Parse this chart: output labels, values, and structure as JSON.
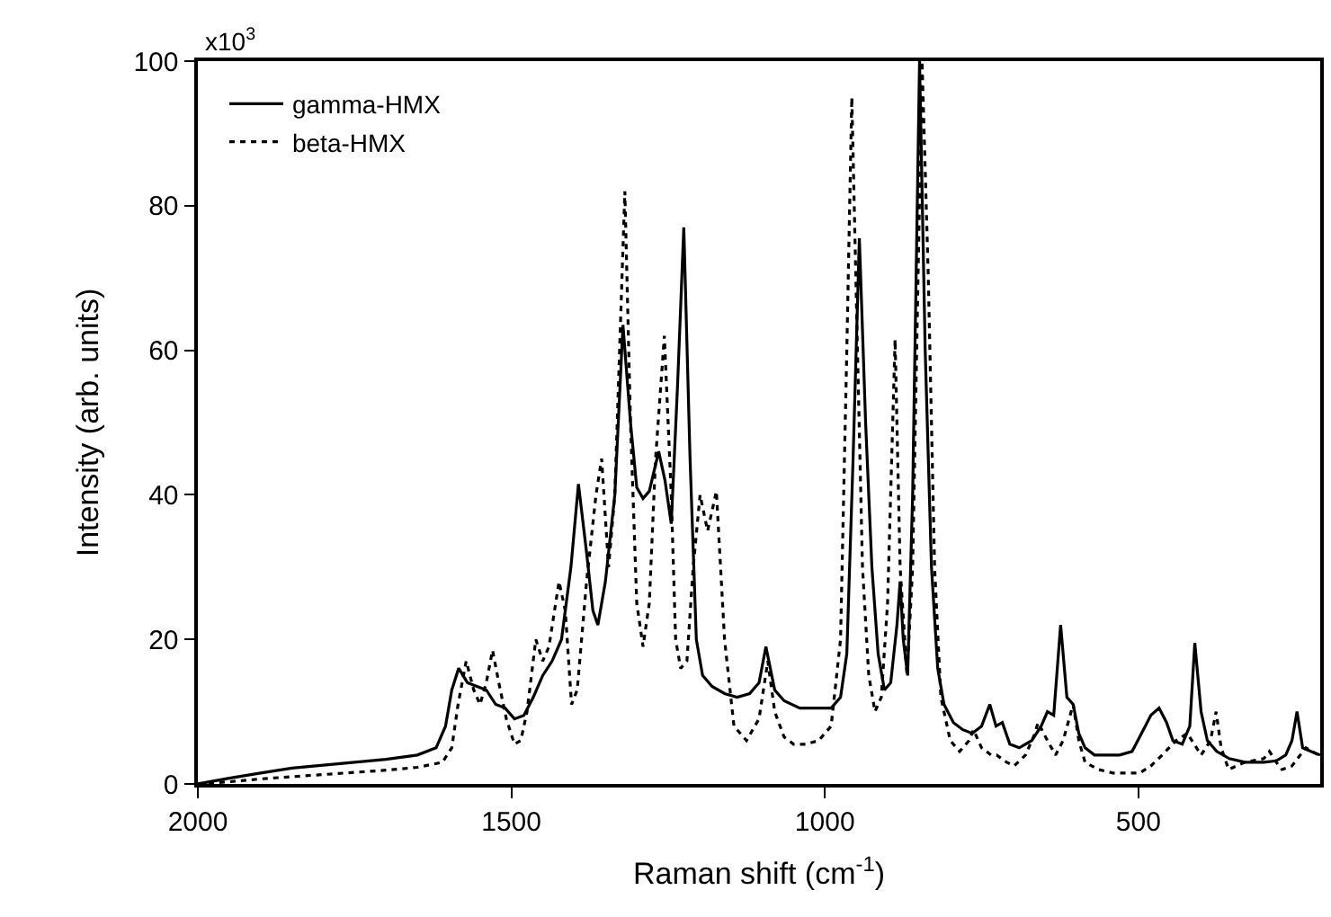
{
  "chart_data": {
    "type": "line",
    "xlabel": "Raman shift (cm$^{-1}$)",
    "ylabel": "Intensity (arb. units)",
    "xlim": [
      2000,
      210
    ],
    "xticks": [
      2000,
      1500,
      1000,
      500
    ],
    "ylim": [
      0,
      100
    ],
    "yticks": [
      0,
      20,
      40,
      60,
      80,
      100
    ],
    "annotations": [
      "x10$^{3}$"
    ],
    "grid": false,
    "legend": "top left",
    "marker": "none",
    "series": [
      {
        "name": "gamma-HMX",
        "color": "#000000",
        "line_style": "solid",
        "x": [
          2000,
          1950,
          1900,
          1850,
          1800,
          1750,
          1700,
          1650,
          1620,
          1605,
          1595,
          1584,
          1570,
          1555,
          1540,
          1525,
          1510,
          1495,
          1480,
          1465,
          1450,
          1435,
          1420,
          1405,
          1393,
          1380,
          1370,
          1362,
          1350,
          1335,
          1322,
          1310,
          1300,
          1290,
          1280,
          1265,
          1255,
          1245,
          1235,
          1225,
          1215,
          1205,
          1195,
          1180,
          1160,
          1140,
          1120,
          1105,
          1094,
          1080,
          1065,
          1040,
          1010,
          990,
          975,
          965,
          955,
          945,
          935,
          925,
          915,
          905,
          895,
          885,
          880,
          875,
          868,
          860,
          849,
          840,
          830,
          820,
          810,
          795,
          780,
          765,
          750,
          737,
          727,
          717,
          705,
          690,
          670,
          655,
          645,
          635,
          624,
          614,
          604,
          595,
          585,
          570,
          550,
          530,
          510,
          495,
          480,
          467,
          455,
          445,
          430,
          418,
          410,
          400,
          390,
          375,
          355,
          330,
          300,
          280,
          265,
          255,
          247,
          238,
          225,
          210
        ],
        "values": [
          0,
          0.8,
          1.5,
          2.2,
          2.6,
          3,
          3.4,
          4,
          5,
          8,
          13,
          16,
          14,
          13.5,
          13,
          11,
          10.5,
          9,
          9.5,
          12,
          15,
          17,
          20,
          30,
          41.5,
          32,
          24,
          22,
          28,
          40,
          63.5,
          50,
          41,
          39.5,
          40.5,
          46,
          42,
          36,
          55,
          77,
          45,
          20,
          15,
          13.5,
          12.5,
          12,
          12.5,
          14,
          19,
          13,
          11.5,
          10.5,
          10.5,
          10.5,
          12,
          18,
          45,
          75.5,
          50,
          30,
          18,
          13,
          14,
          22,
          28,
          20,
          15,
          40,
          100,
          60,
          30,
          16,
          11,
          8.5,
          7.5,
          7,
          8,
          11,
          8,
          8.5,
          5.5,
          5,
          6,
          8,
          10,
          9.5,
          22,
          12,
          11,
          7,
          5,
          4,
          4,
          4,
          4.5,
          7,
          9.5,
          10.5,
          8.5,
          6,
          5.5,
          8,
          19.5,
          10,
          6,
          4.5,
          3.5,
          3,
          3,
          3.2,
          4,
          6,
          10,
          5,
          4.5,
          4
        ]
      },
      {
        "name": "beta-HMX",
        "color": "#000000",
        "line_style": "dotted",
        "x": [
          2000,
          1950,
          1900,
          1850,
          1800,
          1750,
          1700,
          1650,
          1610,
          1595,
          1585,
          1572,
          1560,
          1550,
          1540,
          1530,
          1520,
          1508,
          1495,
          1485,
          1475,
          1461,
          1450,
          1440,
          1424,
          1414,
          1404,
          1395,
          1380,
          1365,
          1356,
          1345,
          1335,
          1319,
          1310,
          1300,
          1290,
          1280,
          1270,
          1256,
          1245,
          1238,
          1230,
          1220,
          1210,
          1199,
          1187,
          1173,
          1160,
          1145,
          1125,
          1105,
          1091,
          1080,
          1065,
          1050,
          1031,
          1010,
          990,
          975,
          965,
          957,
          948,
          940,
          930,
          920,
          910,
          900,
          888,
          880,
          869,
          860,
          845,
          835,
          825,
          815,
          800,
          785,
          770,
          763,
          750,
          735,
          726,
          710,
          698,
          680,
          665,
          660,
          645,
          632,
          620,
          604,
          595,
          585,
          564,
          540,
          520,
          498,
          480,
          462,
          440,
          422,
          400,
          385,
          376,
          368,
          356,
          330,
          300,
          291,
          280,
          271,
          255,
          233,
          213
        ],
        "values": [
          0,
          0.3,
          0.7,
          1,
          1.3,
          1.6,
          1.9,
          2.3,
          3,
          5,
          11,
          17,
          13,
          11,
          14,
          18.5,
          14,
          9,
          5.5,
          6,
          10,
          20,
          17,
          19,
          28,
          24,
          11,
          13,
          28,
          40,
          45,
          30,
          40,
          82,
          50,
          25,
          19,
          25,
          45,
          62,
          40,
          20,
          16,
          17,
          30,
          40,
          35,
          40.5,
          20,
          8,
          6,
          9,
          17,
          10,
          6.5,
          5.5,
          5.5,
          6,
          8,
          20,
          60,
          95,
          60,
          30,
          15,
          10,
          12,
          25,
          61.5,
          30,
          15,
          30,
          100,
          70,
          30,
          12,
          6,
          4.5,
          6,
          7.5,
          5,
          4,
          4,
          3,
          2.5,
          4,
          7,
          8.5,
          6,
          4,
          6,
          11,
          6,
          3,
          2,
          1.5,
          1.5,
          1.5,
          2.5,
          4,
          6,
          7,
          4,
          6,
          10,
          5,
          2,
          3,
          3.5,
          4.5,
          3,
          2,
          2.5,
          5,
          4
        ]
      }
    ]
  }
}
